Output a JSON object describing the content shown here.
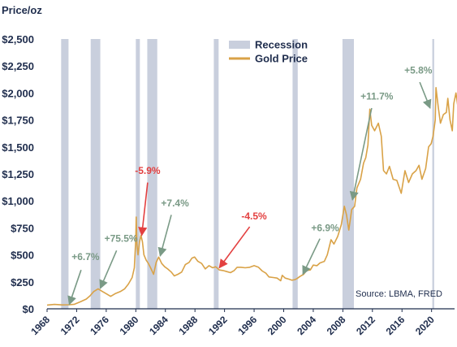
{
  "chart_data": {
    "type": "line",
    "title": "",
    "ylabel": "Price/oz",
    "xlabel": "",
    "xlim": [
      1968,
      2023
    ],
    "ylim": [
      0,
      2500
    ],
    "y_ticks": [
      {
        "value": 0,
        "label": "$0"
      },
      {
        "value": 250,
        "label": "$250"
      },
      {
        "value": 500,
        "label": "$500"
      },
      {
        "value": 750,
        "label": "$750"
      },
      {
        "value": 1000,
        "label": "$1,000"
      },
      {
        "value": 1250,
        "label": "$1,250"
      },
      {
        "value": 1500,
        "label": "$1,500"
      },
      {
        "value": 1750,
        "label": "$1,750"
      },
      {
        "value": 2000,
        "label": "$2,000"
      },
      {
        "value": 2250,
        "label": "$2,250"
      },
      {
        "value": 2500,
        "label": "$2,500"
      }
    ],
    "x_ticks": [
      {
        "value": 1968,
        "label": "1968"
      },
      {
        "value": 1972,
        "label": "1972"
      },
      {
        "value": 1976,
        "label": "1976"
      },
      {
        "value": 1980,
        "label": "1980"
      },
      {
        "value": 1984,
        "label": "1984"
      },
      {
        "value": 1988,
        "label": "1988"
      },
      {
        "value": 1992,
        "label": "1992"
      },
      {
        "value": 1996,
        "label": "1996"
      },
      {
        "value": 2000,
        "label": "2000"
      },
      {
        "value": 2004,
        "label": "2004"
      },
      {
        "value": 2008,
        "label": "2008"
      },
      {
        "value": 2012,
        "label": "2012"
      },
      {
        "value": 2016,
        "label": "2016"
      },
      {
        "value": 2020,
        "label": "2020"
      }
    ],
    "legend": {
      "position": "top-center",
      "entries": [
        {
          "label": "Recession",
          "color": "#c9cfdd",
          "kind": "band"
        },
        {
          "label": "Gold Price",
          "color": "#d9a247",
          "kind": "line"
        }
      ]
    },
    "recessions": [
      {
        "start": 1969.9,
        "end": 1970.9
      },
      {
        "start": 1973.9,
        "end": 1975.2
      },
      {
        "start": 1980.0,
        "end": 1980.55
      },
      {
        "start": 1981.55,
        "end": 1982.9
      },
      {
        "start": 1990.55,
        "end": 1991.2
      },
      {
        "start": 2001.2,
        "end": 2001.9
      },
      {
        "start": 2007.95,
        "end": 2009.5
      },
      {
        "start": 2020.1,
        "end": 2020.35
      }
    ],
    "series": [
      {
        "name": "Gold Price",
        "color": "#d9a247",
        "points": [
          [
            1968.0,
            35
          ],
          [
            1969.0,
            41
          ],
          [
            1970.0,
            36
          ],
          [
            1971.0,
            38
          ],
          [
            1971.7,
            42
          ],
          [
            1972.5,
            65
          ],
          [
            1973.3,
            90
          ],
          [
            1973.8,
            120
          ],
          [
            1974.3,
            160
          ],
          [
            1974.9,
            185
          ],
          [
            1975.5,
            160
          ],
          [
            1976.0,
            140
          ],
          [
            1976.6,
            115
          ],
          [
            1977.2,
            140
          ],
          [
            1977.9,
            160
          ],
          [
            1978.5,
            185
          ],
          [
            1979.0,
            230
          ],
          [
            1979.5,
            290
          ],
          [
            1979.8,
            380
          ],
          [
            1980.0,
            650
          ],
          [
            1980.05,
            850
          ],
          [
            1980.15,
            600
          ],
          [
            1980.3,
            500
          ],
          [
            1980.5,
            620
          ],
          [
            1980.7,
            680
          ],
          [
            1980.9,
            620
          ],
          [
            1981.1,
            500
          ],
          [
            1981.4,
            450
          ],
          [
            1981.7,
            420
          ],
          [
            1982.0,
            380
          ],
          [
            1982.4,
            320
          ],
          [
            1982.75,
            430
          ],
          [
            1983.1,
            480
          ],
          [
            1983.5,
            420
          ],
          [
            1983.9,
            390
          ],
          [
            1984.3,
            370
          ],
          [
            1984.8,
            340
          ],
          [
            1985.2,
            305
          ],
          [
            1985.7,
            320
          ],
          [
            1986.2,
            340
          ],
          [
            1986.7,
            410
          ],
          [
            1987.2,
            430
          ],
          [
            1987.6,
            470
          ],
          [
            1987.95,
            480
          ],
          [
            1988.4,
            440
          ],
          [
            1988.9,
            420
          ],
          [
            1989.4,
            370
          ],
          [
            1989.9,
            400
          ],
          [
            1990.4,
            380
          ],
          [
            1990.8,
            390
          ],
          [
            1991.3,
            360
          ],
          [
            1991.8,
            355
          ],
          [
            1992.3,
            345
          ],
          [
            1992.8,
            335
          ],
          [
            1993.3,
            355
          ],
          [
            1993.7,
            385
          ],
          [
            1994.2,
            385
          ],
          [
            1994.8,
            380
          ],
          [
            1995.4,
            385
          ],
          [
            1996.0,
            400
          ],
          [
            1996.6,
            385
          ],
          [
            1997.1,
            350
          ],
          [
            1997.6,
            330
          ],
          [
            1998.0,
            295
          ],
          [
            1998.6,
            290
          ],
          [
            1999.1,
            285
          ],
          [
            1999.6,
            260
          ],
          [
            1999.8,
            310
          ],
          [
            2000.2,
            285
          ],
          [
            2000.7,
            275
          ],
          [
            2001.1,
            265
          ],
          [
            2001.5,
            270
          ],
          [
            2001.8,
            280
          ],
          [
            2002.2,
            300
          ],
          [
            2002.7,
            320
          ],
          [
            2003.1,
            355
          ],
          [
            2003.6,
            360
          ],
          [
            2004.0,
            405
          ],
          [
            2004.5,
            400
          ],
          [
            2004.9,
            425
          ],
          [
            2005.5,
            440
          ],
          [
            2005.9,
            500
          ],
          [
            2006.4,
            640
          ],
          [
            2006.8,
            600
          ],
          [
            2007.3,
            670
          ],
          [
            2007.8,
            780
          ],
          [
            2008.2,
            950
          ],
          [
            2008.5,
            870
          ],
          [
            2008.8,
            730
          ],
          [
            2009.2,
            920
          ],
          [
            2009.6,
            950
          ],
          [
            2009.9,
            1120
          ],
          [
            2010.4,
            1200
          ],
          [
            2010.8,
            1350
          ],
          [
            2011.1,
            1400
          ],
          [
            2011.4,
            1520
          ],
          [
            2011.65,
            1850
          ],
          [
            2011.9,
            1700
          ],
          [
            2012.3,
            1650
          ],
          [
            2012.8,
            1720
          ],
          [
            2013.2,
            1600
          ],
          [
            2013.5,
            1280
          ],
          [
            2013.9,
            1250
          ],
          [
            2014.3,
            1320
          ],
          [
            2014.8,
            1200
          ],
          [
            2015.3,
            1190
          ],
          [
            2015.9,
            1070
          ],
          [
            2016.4,
            1280
          ],
          [
            2016.9,
            1170
          ],
          [
            2017.4,
            1250
          ],
          [
            2017.9,
            1280
          ],
          [
            2018.3,
            1330
          ],
          [
            2018.7,
            1200
          ],
          [
            2019.2,
            1300
          ],
          [
            2019.6,
            1500
          ],
          [
            2019.95,
            1530
          ],
          [
            2020.2,
            1600
          ],
          [
            2020.5,
            1750
          ],
          [
            2020.6,
            2050
          ],
          [
            2020.9,
            1870
          ],
          [
            2021.2,
            1720
          ],
          [
            2021.6,
            1800
          ],
          [
            2022.0,
            1820
          ],
          [
            2022.2,
            1950
          ],
          [
            2022.5,
            1750
          ],
          [
            2022.8,
            1650
          ],
          [
            2023.0,
            1900
          ],
          [
            2023.3,
            2000
          ],
          [
            2023.6,
            1850
          ],
          [
            2023.8,
            2000
          ]
        ]
      }
    ],
    "annotations": [
      {
        "text": "+6.7%",
        "color": "#7a9a86",
        "text_at": [
          1973.2,
          450
        ],
        "arrow_to": [
          1971.0,
          40
        ],
        "arrow_from": [
          1972.6,
          360
        ]
      },
      {
        "text": "+75.5%",
        "color": "#7a9a86",
        "text_at": [
          1978.0,
          620
        ],
        "arrow_to": [
          1975.2,
          190
        ],
        "arrow_from": [
          1977.4,
          540
        ]
      },
      {
        "text": "-5.9%",
        "color": "#e34040",
        "text_at": [
          1981.6,
          1250
        ],
        "arrow_to": [
          1980.8,
          680
        ],
        "arrow_from": [
          1981.6,
          1170
        ]
      },
      {
        "text": "+7.4%",
        "color": "#7a9a86",
        "text_at": [
          1985.3,
          950
        ],
        "arrow_to": [
          1983.3,
          490
        ],
        "arrow_from": [
          1984.8,
          870
        ]
      },
      {
        "text": "-4.5%",
        "color": "#e34040",
        "text_at": [
          1996.0,
          830
        ],
        "arrow_to": [
          1991.3,
          380
        ],
        "arrow_from": [
          1995.4,
          760
        ]
      },
      {
        "text": "+6.9%",
        "color": "#7a9a86",
        "text_at": [
          2005.6,
          720
        ],
        "arrow_to": [
          2002.6,
          320
        ],
        "arrow_from": [
          2004.9,
          650
        ]
      },
      {
        "text": "+11.7%",
        "color": "#7a9a86",
        "text_at": [
          2012.6,
          1940
        ],
        "arrow_to": [
          2009.3,
          1010
        ],
        "arrow_from": [
          2011.9,
          1860
        ]
      },
      {
        "text": "+5.8%",
        "color": "#7a9a86",
        "text_at": [
          2018.2,
          2180
        ],
        "arrow_to": [
          2019.8,
          1860
        ],
        "arrow_from": [
          2018.4,
          2100
        ]
      }
    ],
    "source": "Source: LBMA, FRED",
    "grid": false
  }
}
